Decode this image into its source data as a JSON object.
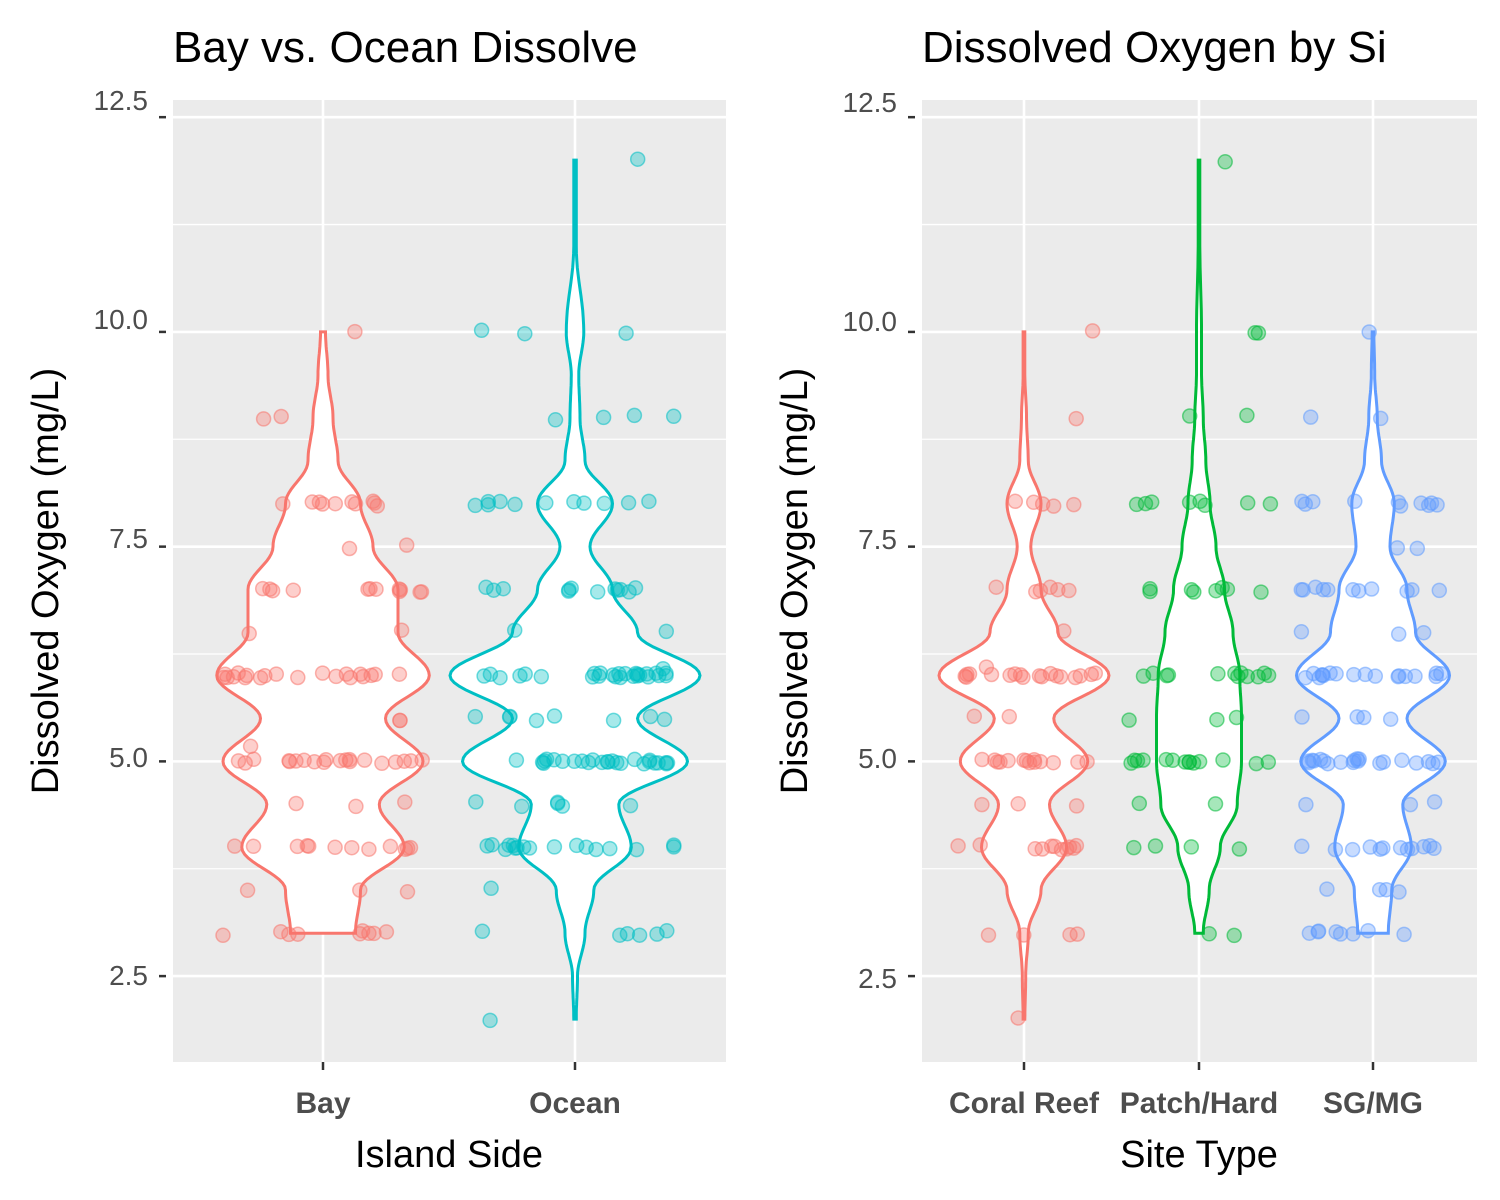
{
  "chart_data": [
    {
      "type": "violin",
      "title": "Bay vs. Ocean Dissolve",
      "xlabel": "Island Side",
      "ylabel": "Dissolved Oxygen (mg/L)",
      "ylim": [
        1.5,
        12.7
      ],
      "yticks": [
        "2.5",
        "5.0",
        "7.5",
        "10.0",
        "12.5"
      ],
      "grid": true,
      "legend": "none",
      "categories": [
        "Bay",
        "Ocean"
      ],
      "colors": [
        "#f8766d",
        "#00bfc4"
      ],
      "violin_range": [
        [
          3.0,
          10.0
        ],
        [
          2.0,
          12.0
        ]
      ],
      "violin_profile": [
        [
          [
            3.0,
            0.26
          ],
          [
            3.5,
            0.3
          ],
          [
            4.0,
            0.65
          ],
          [
            4.5,
            0.45
          ],
          [
            5.0,
            0.8
          ],
          [
            5.5,
            0.5
          ],
          [
            6.0,
            0.85
          ],
          [
            6.5,
            0.6
          ],
          [
            7.0,
            0.6
          ],
          [
            7.5,
            0.4
          ],
          [
            8.0,
            0.3
          ],
          [
            8.5,
            0.12
          ],
          [
            9.0,
            0.08
          ],
          [
            9.5,
            0.04
          ],
          [
            10.0,
            0.02
          ]
        ],
        [
          [
            2.0,
            0.01
          ],
          [
            2.5,
            0.02
          ],
          [
            3.0,
            0.08
          ],
          [
            3.5,
            0.15
          ],
          [
            4.0,
            0.45
          ],
          [
            4.5,
            0.35
          ],
          [
            5.0,
            0.9
          ],
          [
            5.5,
            0.5
          ],
          [
            6.0,
            1.0
          ],
          [
            6.5,
            0.5
          ],
          [
            7.0,
            0.3
          ],
          [
            7.5,
            0.12
          ],
          [
            8.0,
            0.3
          ],
          [
            8.5,
            0.08
          ],
          [
            9.0,
            0.04
          ],
          [
            9.5,
            0.03
          ],
          [
            10.0,
            0.07
          ],
          [
            11.0,
            0.01
          ],
          [
            12.0,
            0.01
          ]
        ]
      ],
      "points": [
        [
          3.0,
          3.0,
          3.0,
          3.0,
          3.0,
          3.0,
          3.0,
          3.0,
          3.0,
          3.5,
          3.5,
          3.5,
          4.0,
          4.0,
          4.0,
          4.0,
          4.0,
          4.0,
          4.0,
          4.0,
          4.0,
          4.0,
          4.0,
          4.0,
          4.5,
          4.5,
          4.5,
          5.0,
          5.0,
          5.0,
          5.0,
          5.0,
          5.0,
          5.0,
          5.0,
          5.0,
          5.0,
          5.0,
          5.0,
          5.0,
          5.0,
          5.0,
          5.0,
          5.0,
          5.0,
          5.0,
          5.0,
          5.2,
          5.5,
          5.5,
          6.0,
          6.0,
          6.0,
          6.0,
          6.0,
          6.0,
          6.0,
          6.0,
          6.0,
          6.0,
          6.0,
          6.0,
          6.0,
          6.0,
          6.0,
          6.0,
          6.0,
          6.0,
          6.0,
          6.0,
          6.5,
          6.5,
          7.0,
          7.0,
          7.0,
          7.0,
          7.0,
          7.0,
          7.0,
          7.0,
          7.0,
          7.0,
          7.0,
          7.0,
          7.5,
          7.5,
          8.0,
          8.0,
          8.0,
          8.0,
          8.0,
          8.0,
          8.0,
          8.0,
          8.0,
          8.0,
          9.0,
          9.0,
          10.0
        ],
        [
          2.0,
          3.0,
          3.0,
          3.0,
          3.0,
          3.0,
          3.0,
          3.5,
          4.0,
          4.0,
          4.0,
          4.0,
          4.0,
          4.0,
          4.0,
          4.0,
          4.0,
          4.0,
          4.0,
          4.0,
          4.0,
          4.0,
          4.0,
          4.0,
          4.0,
          4.5,
          4.5,
          4.5,
          4.5,
          4.5,
          4.5,
          5.0,
          5.0,
          5.0,
          5.0,
          5.0,
          5.0,
          5.0,
          5.0,
          5.0,
          5.0,
          5.0,
          5.0,
          5.0,
          5.0,
          5.0,
          5.0,
          5.0,
          5.0,
          5.0,
          5.0,
          5.0,
          5.0,
          5.0,
          5.0,
          5.0,
          5.0,
          5.5,
          5.5,
          5.5,
          5.5,
          5.5,
          5.5,
          5.5,
          5.5,
          6.0,
          6.0,
          6.0,
          6.0,
          6.0,
          6.0,
          6.0,
          6.0,
          6.0,
          6.0,
          6.0,
          6.0,
          6.0,
          6.0,
          6.0,
          6.0,
          6.0,
          6.0,
          6.0,
          6.0,
          6.0,
          6.0,
          6.0,
          6.0,
          6.0,
          6.0,
          6.1,
          6.5,
          6.5,
          7.0,
          7.0,
          7.0,
          7.0,
          7.0,
          7.0,
          7.0,
          7.0,
          7.0,
          7.0,
          7.0,
          7.0,
          8.0,
          8.0,
          8.0,
          8.0,
          8.0,
          8.0,
          8.0,
          8.0,
          8.0,
          8.0,
          8.0,
          9.0,
          9.0,
          9.0,
          9.0,
          10.0,
          10.0,
          10.0,
          12.0
        ]
      ]
    },
    {
      "type": "violin",
      "title": "Dissolved Oxygen by Si",
      "xlabel": "Site Type",
      "ylabel": "Dissolved Oxygen (mg/L)",
      "ylim": [
        1.5,
        12.7
      ],
      "yticks": [
        "2.5",
        "5.0",
        "7.5",
        "10.0",
        "12.5"
      ],
      "grid": true,
      "legend": "none",
      "categories": [
        "Coral Reef",
        "Patch/Hard",
        "SG/MG"
      ],
      "colors": [
        "#f8766d",
        "#00ba38",
        "#619cff"
      ],
      "violin_range": [
        [
          2.0,
          10.0
        ],
        [
          3.0,
          12.0
        ],
        [
          3.0,
          10.0
        ]
      ],
      "violin_profile": [
        [
          [
            2.0,
            0.01
          ],
          [
            2.5,
            0.02
          ],
          [
            3.0,
            0.05
          ],
          [
            3.5,
            0.2
          ],
          [
            4.0,
            0.5
          ],
          [
            4.5,
            0.3
          ],
          [
            5.0,
            0.75
          ],
          [
            5.5,
            0.35
          ],
          [
            6.0,
            1.0
          ],
          [
            6.5,
            0.4
          ],
          [
            7.0,
            0.2
          ],
          [
            7.5,
            0.08
          ],
          [
            8.0,
            0.2
          ],
          [
            8.5,
            0.05
          ],
          [
            9.0,
            0.03
          ],
          [
            9.5,
            0.01
          ],
          [
            10.0,
            0.01
          ]
        ],
        [
          [
            3.0,
            0.05
          ],
          [
            3.5,
            0.12
          ],
          [
            4.0,
            0.25
          ],
          [
            4.5,
            0.45
          ],
          [
            5.0,
            0.5
          ],
          [
            5.5,
            0.5
          ],
          [
            6.0,
            0.48
          ],
          [
            6.5,
            0.4
          ],
          [
            7.0,
            0.3
          ],
          [
            7.5,
            0.2
          ],
          [
            8.0,
            0.13
          ],
          [
            8.5,
            0.08
          ],
          [
            9.0,
            0.05
          ],
          [
            9.5,
            0.03
          ],
          [
            10.0,
            0.03
          ],
          [
            11.0,
            0.01
          ],
          [
            12.0,
            0.01
          ]
        ],
        [
          [
            3.0,
            0.18
          ],
          [
            3.5,
            0.22
          ],
          [
            4.0,
            0.45
          ],
          [
            4.5,
            0.35
          ],
          [
            5.0,
            0.85
          ],
          [
            5.5,
            0.4
          ],
          [
            6.0,
            0.9
          ],
          [
            6.5,
            0.5
          ],
          [
            7.0,
            0.4
          ],
          [
            7.5,
            0.2
          ],
          [
            8.0,
            0.25
          ],
          [
            8.5,
            0.1
          ],
          [
            9.0,
            0.05
          ],
          [
            9.5,
            0.02
          ],
          [
            10.0,
            0.01
          ]
        ]
      ],
      "points": [
        [
          2.0,
          3.0,
          3.0,
          3.0,
          3.0,
          4.0,
          4.0,
          4.0,
          4.0,
          4.0,
          4.0,
          4.0,
          4.0,
          4.0,
          4.0,
          4.0,
          4.5,
          4.5,
          4.5,
          5.0,
          5.0,
          5.0,
          5.0,
          5.0,
          5.0,
          5.0,
          5.0,
          5.0,
          5.0,
          5.0,
          5.0,
          5.0,
          5.0,
          5.5,
          5.5,
          6.0,
          6.0,
          6.0,
          6.0,
          6.0,
          6.0,
          6.0,
          6.0,
          6.0,
          6.0,
          6.0,
          6.0,
          6.0,
          6.0,
          6.0,
          6.0,
          6.0,
          6.0,
          6.1,
          6.5,
          7.0,
          7.0,
          7.0,
          7.0,
          7.0,
          7.0,
          8.0,
          8.0,
          8.0,
          8.0,
          8.0,
          9.0,
          10.0
        ],
        [
          3.0,
          3.0,
          4.0,
          4.0,
          4.0,
          4.0,
          4.5,
          4.5,
          5.0,
          5.0,
          5.0,
          5.0,
          5.0,
          5.0,
          5.0,
          5.0,
          5.0,
          5.0,
          5.0,
          5.0,
          5.0,
          5.0,
          5.5,
          5.5,
          5.5,
          6.0,
          6.0,
          6.0,
          6.0,
          6.0,
          6.0,
          6.0,
          6.0,
          6.0,
          6.0,
          6.0,
          6.0,
          7.0,
          7.0,
          7.0,
          7.0,
          7.0,
          7.0,
          7.0,
          7.0,
          8.0,
          8.0,
          8.0,
          8.0,
          8.0,
          8.0,
          8.0,
          8.0,
          9.0,
          9.0,
          10.0,
          10.0,
          12.0
        ],
        [
          3.0,
          3.0,
          3.0,
          3.0,
          3.0,
          3.0,
          3.0,
          3.0,
          3.5,
          3.5,
          3.5,
          3.5,
          4.0,
          4.0,
          4.0,
          4.0,
          4.0,
          4.0,
          4.0,
          4.0,
          4.0,
          4.0,
          4.0,
          4.0,
          4.5,
          4.5,
          4.5,
          5.0,
          5.0,
          5.0,
          5.0,
          5.0,
          5.0,
          5.0,
          5.0,
          5.0,
          5.0,
          5.0,
          5.0,
          5.0,
          5.0,
          5.0,
          5.0,
          5.0,
          5.0,
          5.0,
          5.0,
          5.5,
          5.5,
          5.5,
          5.5,
          6.0,
          6.0,
          6.0,
          6.0,
          6.0,
          6.0,
          6.0,
          6.0,
          6.0,
          6.0,
          6.0,
          6.0,
          6.0,
          6.0,
          6.0,
          6.0,
          6.0,
          6.0,
          6.5,
          6.5,
          6.5,
          7.0,
          7.0,
          7.0,
          7.0,
          7.0,
          7.0,
          7.0,
          7.0,
          7.0,
          7.0,
          7.0,
          7.5,
          7.5,
          8.0,
          8.0,
          8.0,
          8.0,
          8.0,
          8.0,
          8.0,
          8.0,
          8.0,
          8.0,
          9.0,
          9.0,
          10.0
        ]
      ]
    }
  ]
}
